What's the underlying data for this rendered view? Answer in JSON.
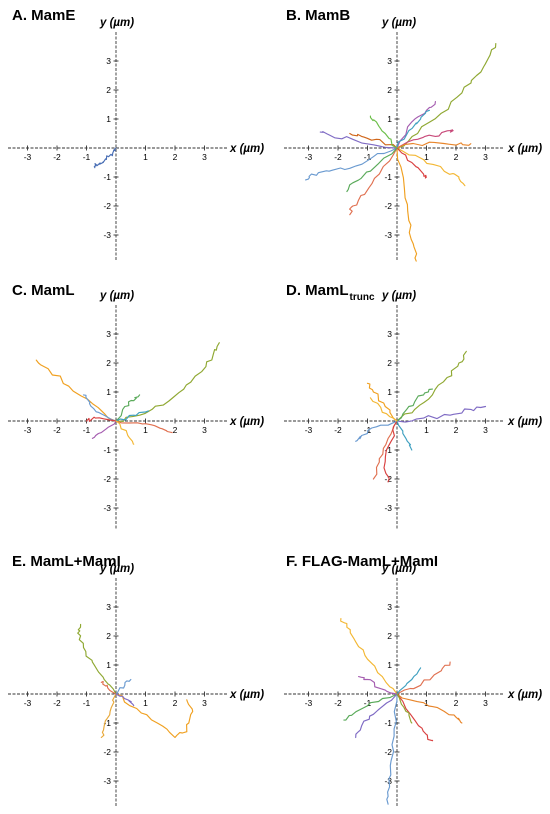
{
  "chart_data": [
    {
      "type": "line",
      "panel": "A",
      "title": "A. MamE",
      "xlabel": "x (µm)",
      "ylabel": "y (µm)",
      "xlim": [
        -3.7,
        3.7
      ],
      "ylim": [
        -3.9,
        4.0
      ],
      "xticks": [
        "-3",
        "-2",
        "-1",
        "1",
        "2",
        "3"
      ],
      "yticks": [
        "3",
        "2",
        "1",
        "-1",
        "-2",
        "-3"
      ],
      "series": [
        {
          "color": "#4a6fb5",
          "x": [
            0,
            -0.1,
            -0.25,
            -0.4,
            -0.55,
            -0.68,
            -0.72
          ],
          "y": [
            0,
            -0.15,
            -0.3,
            -0.45,
            -0.55,
            -0.62,
            -0.68
          ]
        }
      ]
    },
    {
      "type": "line",
      "panel": "B",
      "title": "B. MamB",
      "xlabel": "x (µm)",
      "ylabel": "y (µm)",
      "xlim": [
        -3.7,
        3.7
      ],
      "ylim": [
        -3.9,
        4.0
      ],
      "xticks": [
        "-3",
        "-2",
        "-1",
        "1",
        "2",
        "3"
      ],
      "yticks": [
        "3",
        "2",
        "1",
        "-1",
        "-2",
        "-3"
      ],
      "series": [
        {
          "color": "#8fa832",
          "x": [
            0,
            0.7,
            1.5,
            2.2,
            2.7,
            3.1,
            3.35
          ],
          "y": [
            0,
            0.5,
            1.2,
            1.9,
            2.5,
            3.1,
            3.6
          ]
        },
        {
          "color": "#f0a020",
          "x": [
            0,
            0.25,
            0.4,
            0.55,
            0.65
          ],
          "y": [
            0,
            -1.4,
            -2.5,
            -3.3,
            -3.9
          ]
        },
        {
          "color": "#6a9ad0",
          "x": [
            0,
            -0.8,
            -1.6,
            -2.3,
            -2.9,
            -3.1
          ],
          "y": [
            0,
            -0.3,
            -0.7,
            -0.8,
            -0.9,
            -1.1
          ]
        },
        {
          "color": "#e07050",
          "x": [
            0,
            -0.6,
            -1.1,
            -1.5,
            -1.6
          ],
          "y": [
            0,
            -0.9,
            -1.6,
            -2.0,
            -2.3
          ]
        },
        {
          "color": "#5aaa5a",
          "x": [
            0,
            -0.9,
            -1.5,
            -1.7
          ],
          "y": [
            0,
            -0.8,
            -1.2,
            -1.5
          ]
        },
        {
          "color": "#f3b733",
          "x": [
            0,
            0.9,
            1.6,
            2.1,
            2.3
          ],
          "y": [
            0,
            -0.4,
            -0.8,
            -1.0,
            -1.3
          ]
        },
        {
          "color": "#a55db0",
          "x": [
            0,
            0.5,
            1.0,
            1.3
          ],
          "y": [
            0,
            0.9,
            1.3,
            1.6
          ]
        },
        {
          "color": "#c84a7a",
          "x": [
            0,
            0.7,
            1.3,
            1.8,
            1.9
          ],
          "y": [
            0,
            0.3,
            0.4,
            0.6,
            0.6
          ]
        },
        {
          "color": "#d0661a",
          "x": [
            0,
            -0.7,
            -1.2,
            -1.6
          ],
          "y": [
            0,
            0.3,
            0.4,
            0.5
          ]
        },
        {
          "color": "#3fa0c0",
          "x": [
            0,
            0.4,
            0.8,
            1.1
          ],
          "y": [
            0,
            0.6,
            1.0,
            1.3
          ]
        },
        {
          "color": "#e8852a",
          "x": [
            0,
            1.1,
            2.0,
            2.5
          ],
          "y": [
            0,
            0.2,
            0.1,
            0.15
          ]
        },
        {
          "color": "#7f6bc4",
          "x": [
            0,
            -1.5,
            -2.3,
            -2.6
          ],
          "y": [
            0,
            0.3,
            0.45,
            0.55
          ]
        },
        {
          "color": "#d94040",
          "x": [
            0,
            0.5,
            0.9,
            1.0
          ],
          "y": [
            0,
            -0.5,
            -0.9,
            -1.0
          ]
        },
        {
          "color": "#6cbf4a",
          "x": [
            0,
            -0.4,
            -0.7,
            -0.9
          ],
          "y": [
            0,
            0.5,
            0.9,
            1.1
          ]
        }
      ]
    },
    {
      "type": "line",
      "panel": "C",
      "title": "C. MamL",
      "xlabel": "x (µm)",
      "ylabel": "y (µm)",
      "xlim": [
        -3.7,
        3.7
      ],
      "ylim": [
        -3.9,
        4.0
      ],
      "xticks": [
        "-3",
        "-2",
        "-1",
        "1",
        "2",
        "3"
      ],
      "yticks": [
        "3",
        "2",
        "1",
        "-1",
        "-2",
        "-3"
      ],
      "series": [
        {
          "color": "#8fa832",
          "x": [
            0,
            0.8,
            1.6,
            2.3,
            2.9,
            3.3,
            3.5
          ],
          "y": [
            0,
            0.2,
            0.55,
            1.1,
            1.7,
            2.3,
            2.7
          ]
        },
        {
          "color": "#f0a020",
          "x": [
            0,
            -0.8,
            -1.6,
            -2.3,
            -2.7
          ],
          "y": [
            0,
            0.6,
            1.2,
            1.8,
            2.1
          ]
        },
        {
          "color": "#e07050",
          "x": [
            0,
            0.9,
            1.5,
            1.9
          ],
          "y": [
            0,
            -0.1,
            -0.25,
            -0.4
          ]
        },
        {
          "color": "#6a9ad0",
          "x": [
            0,
            -0.6,
            -0.9,
            -1.1
          ],
          "y": [
            0,
            0.3,
            0.6,
            0.9
          ]
        },
        {
          "color": "#5aaa5a",
          "x": [
            0,
            0.3,
            0.6,
            0.8
          ],
          "y": [
            0,
            0.5,
            0.7,
            0.9
          ]
        },
        {
          "color": "#a55db0",
          "x": [
            0,
            -0.5,
            -0.8
          ],
          "y": [
            0,
            -0.4,
            -0.6
          ]
        },
        {
          "color": "#d94040",
          "x": [
            0,
            -0.7,
            -1.0
          ],
          "y": [
            0,
            0.1,
            0.0
          ]
        },
        {
          "color": "#3fa0c0",
          "x": [
            0,
            0.6,
            1.1
          ],
          "y": [
            0,
            0.2,
            0.35
          ]
        },
        {
          "color": "#f3b733",
          "x": [
            0,
            0.4,
            0.6
          ],
          "y": [
            0,
            -0.5,
            -0.8
          ]
        }
      ]
    },
    {
      "type": "line",
      "panel": "D",
      "title": "D. MamL",
      "title_subscript": "trunc",
      "xlabel": "x (µm)",
      "ylabel": "y (µm)",
      "xlim": [
        -3.7,
        3.7
      ],
      "ylim": [
        -3.9,
        4.0
      ],
      "xticks": [
        "-3",
        "-2",
        "-1",
        "1",
        "2",
        "3"
      ],
      "yticks": [
        "3",
        "2",
        "1",
        "-1",
        "-2",
        "-3"
      ],
      "series": [
        {
          "color": "#8fa832",
          "x": [
            0,
            0.6,
            1.2,
            1.7,
            2.1,
            2.35
          ],
          "y": [
            0,
            0.4,
            0.9,
            1.5,
            2.0,
            2.4
          ]
        },
        {
          "color": "#7f6bc4",
          "x": [
            0,
            0.9,
            1.8,
            2.5,
            3.0
          ],
          "y": [
            0,
            0.1,
            0.2,
            0.4,
            0.5
          ]
        },
        {
          "color": "#e07050",
          "x": [
            0,
            -0.3,
            -0.6,
            -0.8
          ],
          "y": [
            0,
            -0.6,
            -1.3,
            -2.0
          ]
        },
        {
          "color": "#f0a020",
          "x": [
            0,
            -0.4,
            -0.8,
            -1.0
          ],
          "y": [
            0,
            0.5,
            1.0,
            1.3
          ]
        },
        {
          "color": "#6a9ad0",
          "x": [
            0,
            -0.7,
            -1.2,
            -1.4
          ],
          "y": [
            0,
            -0.2,
            -0.5,
            -0.7
          ]
        },
        {
          "color": "#5aaa5a",
          "x": [
            0,
            0.4,
            0.9,
            1.2
          ],
          "y": [
            0,
            0.5,
            0.9,
            1.1
          ]
        },
        {
          "color": "#d94040",
          "x": [
            0,
            -0.2,
            -0.4,
            -0.3
          ],
          "y": [
            0,
            -0.7,
            -1.4,
            -2.1
          ]
        },
        {
          "color": "#3fa0c0",
          "x": [
            0,
            0.3,
            0.5
          ],
          "y": [
            0,
            -0.6,
            -1.0
          ]
        },
        {
          "color": "#f3b733",
          "x": [
            0,
            -0.5,
            -0.9
          ],
          "y": [
            0,
            0.3,
            0.8
          ]
        }
      ]
    },
    {
      "type": "line",
      "panel": "E",
      "title": "E. MamL+MamI",
      "xlabel": "x (µm)",
      "ylabel": "y (µm)",
      "xlim": [
        -3.7,
        3.7
      ],
      "ylim": [
        -3.9,
        4.0
      ],
      "xticks": [
        "-3",
        "-2",
        "-1",
        "1",
        "2",
        "3"
      ],
      "yticks": [
        "3",
        "2",
        "1",
        "-1",
        "-2",
        "-3"
      ],
      "series": [
        {
          "color": "#8fa832",
          "x": [
            0,
            -0.4,
            -0.8,
            -1.1,
            -1.3,
            -1.2
          ],
          "y": [
            0,
            0.5,
            1.1,
            1.6,
            2.1,
            2.4
          ]
        },
        {
          "color": "#f0a020",
          "x": [
            0,
            0.7,
            1.4,
            2.0,
            2.4,
            2.6,
            2.4
          ],
          "y": [
            0,
            -0.5,
            -1.0,
            -1.5,
            -1.3,
            -0.6,
            -0.2
          ]
        },
        {
          "color": "#e8a838",
          "x": [
            0,
            -0.2,
            -0.4,
            -0.5
          ],
          "y": [
            0,
            -0.6,
            -1.1,
            -1.5
          ]
        },
        {
          "color": "#6a9ad0",
          "x": [
            0,
            0.3,
            0.5
          ],
          "y": [
            0,
            0.3,
            0.5
          ]
        },
        {
          "color": "#e07050",
          "x": [
            0,
            -0.3,
            -0.5
          ],
          "y": [
            0,
            0.3,
            0.4
          ]
        },
        {
          "color": "#7f6bc4",
          "x": [
            0,
            0.4,
            0.6
          ],
          "y": [
            0,
            -0.2,
            -0.4
          ]
        }
      ]
    },
    {
      "type": "line",
      "panel": "F",
      "title": "F. FLAG-MamL+MamI",
      "xlabel": "x (µm)",
      "ylabel": "y (µm)",
      "xlim": [
        -3.7,
        3.7
      ],
      "ylim": [
        -3.9,
        4.0
      ],
      "xticks": [
        "-3",
        "-2",
        "-1",
        "1",
        "2",
        "3"
      ],
      "yticks": [
        "3",
        "2",
        "1",
        "-1",
        "-2",
        "-3"
      ],
      "series": [
        {
          "color": "#f3b733",
          "x": [
            0,
            -0.5,
            -1.0,
            -1.4,
            -1.7,
            -1.9
          ],
          "y": [
            0,
            0.6,
            1.2,
            1.8,
            2.3,
            2.6
          ]
        },
        {
          "color": "#6a9ad0",
          "x": [
            0,
            -0.1,
            -0.2,
            -0.25,
            -0.3
          ],
          "y": [
            0,
            -1.2,
            -2.3,
            -3.2,
            -3.8
          ]
        },
        {
          "color": "#e07050",
          "x": [
            0,
            0.8,
            1.5,
            1.8
          ],
          "y": [
            0,
            0.3,
            0.8,
            1.1
          ]
        },
        {
          "color": "#e8852a",
          "x": [
            0,
            0.9,
            1.6,
            2.0,
            2.2
          ],
          "y": [
            0,
            -0.3,
            -0.6,
            -0.8,
            -1.0
          ]
        },
        {
          "color": "#5aaa5a",
          "x": [
            0,
            -0.9,
            -1.5,
            -1.8
          ],
          "y": [
            0,
            -0.3,
            -0.7,
            -0.9
          ]
        },
        {
          "color": "#7f6bc4",
          "x": [
            0,
            -0.8,
            -1.2,
            -1.4
          ],
          "y": [
            0,
            -0.7,
            -1.1,
            -1.5
          ]
        },
        {
          "color": "#d94040",
          "x": [
            0,
            0.6,
            1.0,
            1.2
          ],
          "y": [
            0,
            -0.9,
            -1.4,
            -1.6
          ]
        },
        {
          "color": "#a55db0",
          "x": [
            0,
            -0.6,
            -1.0,
            -1.3
          ],
          "y": [
            0,
            0.2,
            0.5,
            0.6
          ]
        },
        {
          "color": "#3fa0c0",
          "x": [
            0,
            0.5,
            0.8
          ],
          "y": [
            0,
            0.5,
            0.9
          ]
        },
        {
          "color": "#8fa832",
          "x": [
            0,
            0.3,
            0.5
          ],
          "y": [
            0,
            -0.6,
            -1.0
          ]
        }
      ]
    }
  ]
}
